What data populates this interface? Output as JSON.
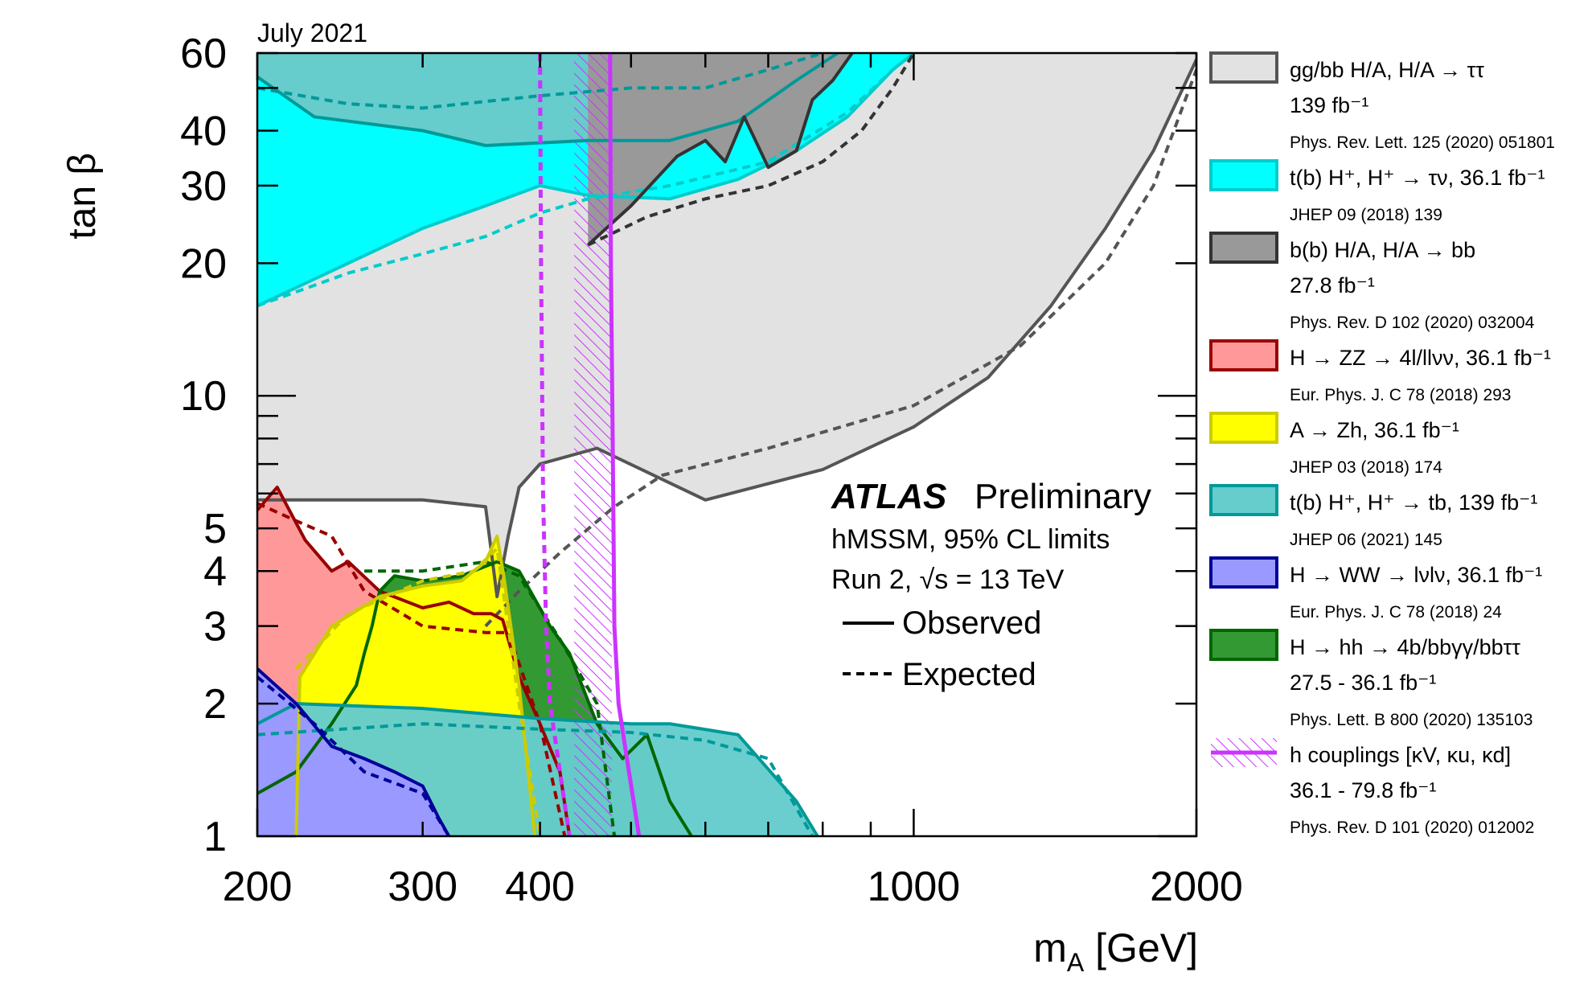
{
  "chart_data": {
    "type": "area",
    "date_label": "July 2021",
    "xlabel": "m_A [GeV]",
    "ylabel": "tan β",
    "x_scale": "log",
    "y_scale": "log",
    "xlim": [
      200,
      2000
    ],
    "ylim": [
      1,
      60
    ],
    "x_ticks": [
      200,
      300,
      400,
      1000,
      2000
    ],
    "x_tick_labels": [
      "200",
      "300",
      "400",
      "1000",
      "2000"
    ],
    "y_ticks": [
      1,
      2,
      3,
      4,
      5,
      10,
      20,
      30,
      40,
      60
    ],
    "y_tick_labels": [
      "1",
      "2",
      "3",
      "4",
      "5",
      "10",
      "20",
      "30",
      "40",
      "60"
    ],
    "annotation": {
      "experiment": "ATLAS",
      "status": "Preliminary",
      "line1": "hMSSM, 95% CL limits",
      "line2_prefix": "Run 2, √s = 13 TeV",
      "observed_label": "Observed",
      "expected_label": "Expected"
    },
    "series": [
      {
        "name": "gg/bb H/A, H/A → ττ",
        "lumi": "139 fb⁻¹",
        "reference": "Phys. Rev. Lett. 125 (2020) 051801",
        "fill": "#e2e2e2",
        "line": "#555555",
        "observed": [
          [
            200,
            5.8
          ],
          [
            230,
            5.8
          ],
          [
            300,
            5.8
          ],
          [
            350,
            5.6
          ],
          [
            360,
            3.5
          ],
          [
            370,
            4.8
          ],
          [
            380,
            6.2
          ],
          [
            400,
            7.0
          ],
          [
            460,
            7.6
          ],
          [
            600,
            5.8
          ],
          [
            800,
            6.8
          ],
          [
            1000,
            8.5
          ],
          [
            1200,
            11
          ],
          [
            1400,
            16
          ],
          [
            1600,
            24
          ],
          [
            1800,
            36
          ],
          [
            2000,
            58
          ]
        ],
        "expected": [
          [
            420,
            22
          ],
          [
            450,
            25
          ],
          [
            480,
            27
          ],
          [
            520,
            28
          ],
          [
            600,
            30
          ],
          [
            700,
            34
          ],
          [
            800,
            38
          ],
          [
            900,
            45
          ],
          [
            1000,
            60
          ],
          [
            1010,
            60
          ]
        ],
        "expected_low": [
          [
            350,
            3.0
          ],
          [
            380,
            3.6
          ],
          [
            420,
            4.4
          ],
          [
            480,
            5.6
          ],
          [
            540,
            6.6
          ],
          [
            700,
            7.6
          ],
          [
            1000,
            9.5
          ],
          [
            1300,
            13
          ],
          [
            1600,
            20
          ],
          [
            1800,
            30
          ],
          [
            2000,
            55
          ]
        ]
      },
      {
        "name": "t(b) H⁺, H⁺ → τν, 36.1 fb⁻¹",
        "reference": "JHEP 09 (2018) 139",
        "fill": "#00ffff",
        "line": "#00cccc",
        "observed": [
          [
            200,
            16
          ],
          [
            250,
            20
          ],
          [
            300,
            24
          ],
          [
            350,
            27
          ],
          [
            400,
            30
          ],
          [
            450,
            28.5
          ],
          [
            550,
            28
          ],
          [
            650,
            31
          ],
          [
            750,
            36
          ],
          [
            850,
            43
          ],
          [
            950,
            55
          ],
          [
            1000,
            60
          ]
        ],
        "expected": [
          [
            200,
            16
          ],
          [
            250,
            19
          ],
          [
            300,
            21
          ],
          [
            350,
            23
          ],
          [
            400,
            26
          ],
          [
            450,
            28
          ],
          [
            550,
            30
          ],
          [
            700,
            34
          ],
          [
            850,
            44
          ],
          [
            950,
            55
          ],
          [
            1000,
            60
          ]
        ]
      },
      {
        "name": "b(b) H/A, H/A → bb",
        "lumi": "27.8 fb⁻¹",
        "reference": "Phys. Rev. D 102 (2020) 032004",
        "fill": "#999999",
        "line": "#333333",
        "observed": [
          [
            450,
            22
          ],
          [
            500,
            27
          ],
          [
            560,
            35
          ],
          [
            600,
            38
          ],
          [
            630,
            34
          ],
          [
            660,
            43
          ],
          [
            700,
            33
          ],
          [
            750,
            36
          ],
          [
            780,
            47
          ],
          [
            820,
            52
          ],
          [
            860,
            60
          ]
        ],
        "expected": [
          [
            450,
            22
          ],
          [
            520,
            25.5
          ],
          [
            600,
            28
          ],
          [
            700,
            30
          ],
          [
            800,
            34
          ],
          [
            880,
            40
          ],
          [
            950,
            50
          ],
          [
            1000,
            60
          ]
        ]
      },
      {
        "name": "H → ZZ → 4l/llνν, 36.1 fb⁻¹",
        "reference": "Eur. Phys. J. C 78 (2018) 293",
        "fill": "#ff9999",
        "line": "#990000",
        "observed": [
          [
            200,
            5.5
          ],
          [
            210,
            6.2
          ],
          [
            225,
            4.7
          ],
          [
            240,
            4.0
          ],
          [
            250,
            4.2
          ],
          [
            270,
            3.6
          ],
          [
            300,
            3.3
          ],
          [
            320,
            3.4
          ],
          [
            340,
            3.2
          ],
          [
            355,
            3.2
          ],
          [
            365,
            3.1
          ],
          [
            380,
            2.3
          ],
          [
            400,
            1.8
          ],
          [
            420,
            1.4
          ],
          [
            430,
            1.0
          ]
        ],
        "expected": [
          [
            200,
            5.7
          ],
          [
            220,
            5.2
          ],
          [
            240,
            4.8
          ],
          [
            260,
            3.6
          ],
          [
            300,
            3.0
          ],
          [
            350,
            2.9
          ],
          [
            370,
            2.9
          ],
          [
            400,
            1.8
          ],
          [
            425,
            1.0
          ]
        ]
      },
      {
        "name": "A → Zh, 36.1 fb⁻¹",
        "reference": "JHEP 03 (2018) 174",
        "fill": "#ffff00",
        "line": "#cccc00",
        "observed": [
          [
            220,
            1.0
          ],
          [
            222,
            2.3
          ],
          [
            240,
            3.0
          ],
          [
            270,
            3.5
          ],
          [
            300,
            3.7
          ],
          [
            330,
            3.8
          ],
          [
            350,
            4.2
          ],
          [
            360,
            4.8
          ],
          [
            366,
            3.9
          ],
          [
            380,
            2.2
          ],
          [
            395,
            1.0
          ]
        ],
        "expected": [
          [
            220,
            2.4
          ],
          [
            250,
            3.2
          ],
          [
            300,
            3.8
          ],
          [
            340,
            4.0
          ],
          [
            360,
            4.5
          ],
          [
            380,
            2.0
          ],
          [
            400,
            1.0
          ]
        ]
      },
      {
        "name": "t(b) H⁺, H⁺ → tb, 139 fb⁻¹",
        "reference": "JHEP 06 (2021) 145",
        "fill": "#66cccc",
        "line": "#009999",
        "observed": [
          [
            200,
            1.8
          ],
          [
            220,
            2.0
          ],
          [
            300,
            1.95
          ],
          [
            400,
            1.85
          ],
          [
            500,
            1.8
          ],
          [
            550,
            1.8
          ],
          [
            650,
            1.7
          ],
          [
            750,
            1.2
          ],
          [
            790,
            1.0
          ]
        ],
        "expected": [
          [
            200,
            1.7
          ],
          [
            300,
            1.8
          ],
          [
            400,
            1.75
          ],
          [
            500,
            1.72
          ],
          [
            600,
            1.65
          ],
          [
            700,
            1.5
          ],
          [
            780,
            1.0
          ]
        ],
        "observed_high": [
          [
            200,
            53
          ],
          [
            230,
            43
          ],
          [
            300,
            40
          ],
          [
            350,
            37
          ],
          [
            450,
            38
          ],
          [
            550,
            38
          ],
          [
            650,
            42
          ],
          [
            750,
            52
          ],
          [
            830,
            60
          ]
        ],
        "expected_high": [
          [
            200,
            50
          ],
          [
            250,
            46
          ],
          [
            300,
            45
          ],
          [
            400,
            48
          ],
          [
            500,
            50
          ],
          [
            600,
            50
          ],
          [
            700,
            55
          ],
          [
            800,
            60
          ]
        ]
      },
      {
        "name": "H → WW → lνlν, 36.1 fb⁻¹",
        "reference": "Eur. Phys. J. C 78 (2018) 24",
        "fill": "#9999ff",
        "line": "#000099",
        "observed": [
          [
            200,
            2.4
          ],
          [
            220,
            2.0
          ],
          [
            240,
            1.6
          ],
          [
            260,
            1.5
          ],
          [
            280,
            1.4
          ],
          [
            300,
            1.3
          ],
          [
            312,
            1.1
          ],
          [
            320,
            1.0
          ]
        ],
        "expected": [
          [
            200,
            2.3
          ],
          [
            230,
            1.8
          ],
          [
            260,
            1.4
          ],
          [
            300,
            1.25
          ],
          [
            320,
            1.0
          ]
        ]
      },
      {
        "name": "H → hh → 4b/bbγγ/bbττ",
        "lumi": "27.5 - 36.1 fb⁻¹",
        "reference": "Phys. Lett. B 800 (2020) 135103",
        "fill": "#339933",
        "line": "#006600",
        "observed": [
          [
            200,
            1.25
          ],
          [
            220,
            1.4
          ],
          [
            240,
            1.8
          ],
          [
            255,
            2.2
          ],
          [
            260,
            2.6
          ],
          [
            265,
            3.0
          ],
          [
            270,
            3.6
          ],
          [
            280,
            3.9
          ],
          [
            300,
            3.8
          ],
          [
            330,
            3.9
          ],
          [
            360,
            4.2
          ],
          [
            380,
            4.0
          ],
          [
            410,
            3.0
          ],
          [
            430,
            2.6
          ],
          [
            460,
            1.8
          ],
          [
            490,
            1.5
          ],
          [
            520,
            1.7
          ],
          [
            550,
            1.2
          ],
          [
            580,
            1.0
          ]
        ],
        "expected": [
          [
            260,
            4.0
          ],
          [
            300,
            4.0
          ],
          [
            350,
            4.2
          ],
          [
            380,
            3.9
          ],
          [
            420,
            2.8
          ],
          [
            460,
            2.0
          ],
          [
            480,
            1.0
          ]
        ]
      },
      {
        "name": "h couplings [κV, κu, κd]",
        "lumi": "36.1 - 79.8 fb⁻¹",
        "reference": "Phys. Rev. D 101 (2020) 012002",
        "fill": "#cc33ff",
        "line": "#cc33ff",
        "observed": [
          [
            475,
            60
          ],
          [
            476,
            20
          ],
          [
            478,
            8
          ],
          [
            480,
            3
          ],
          [
            485,
            2
          ],
          [
            495,
            1.5
          ],
          [
            510,
            1.0
          ]
        ],
        "expected": [
          [
            400,
            60
          ],
          [
            401,
            20
          ],
          [
            403,
            6
          ],
          [
            406,
            3
          ],
          [
            410,
            2
          ],
          [
            420,
            1.4
          ],
          [
            430,
            1.0
          ]
        ]
      }
    ]
  }
}
